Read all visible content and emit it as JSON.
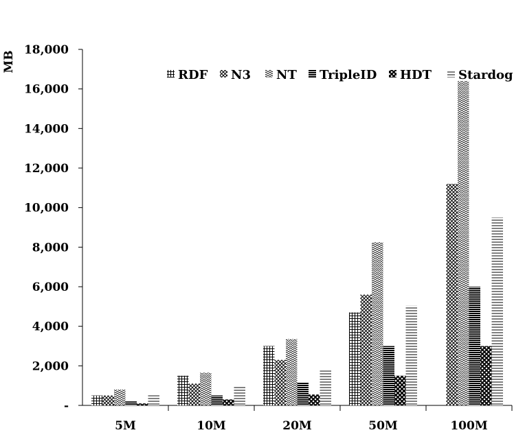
{
  "chart_data": {
    "type": "bar",
    "title": "",
    "xlabel": "",
    "ylabel": "MB",
    "ylim": [
      0,
      18000
    ],
    "ytick_values": [
      0,
      2000,
      4000,
      6000,
      8000,
      10000,
      12000,
      14000,
      16000,
      18000
    ],
    "ytick_labels": [
      "-",
      "2,000",
      "4,000",
      "6,000",
      "8,000",
      "10,000",
      "12,000",
      "14,000",
      "16,000",
      "18,000"
    ],
    "grid": false,
    "legend_position": "top-right",
    "categories": [
      "5M",
      "10M",
      "20M",
      "50M",
      "100M"
    ],
    "series": [
      {
        "name": "RDF",
        "values": [
          500,
          1500,
          3000,
          4700,
          0
        ],
        "pattern": "grid"
      },
      {
        "name": "N3",
        "values": [
          500,
          1100,
          2300,
          5600,
          11200
        ],
        "pattern": "crosshatch"
      },
      {
        "name": "NT",
        "values": [
          800,
          1650,
          3350,
          8250,
          16400
        ],
        "pattern": "zigzag"
      },
      {
        "name": "TripleID",
        "values": [
          200,
          500,
          1150,
          3000,
          6000
        ],
        "pattern": "dense-horizontal"
      },
      {
        "name": "HDT",
        "values": [
          100,
          300,
          550,
          1500,
          3000
        ],
        "pattern": "checker"
      },
      {
        "name": "Stardog",
        "values": [
          500,
          950,
          1750,
          5050,
          9500
        ],
        "pattern": "horizontal"
      }
    ]
  }
}
